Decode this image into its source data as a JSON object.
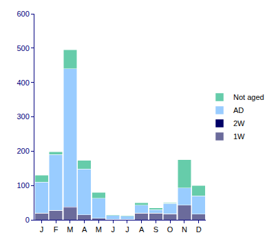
{
  "chart_data": {
    "type": "bar",
    "stacked": true,
    "categories": [
      "J",
      "F",
      "M",
      "A",
      "M",
      "J",
      "J",
      "A",
      "S",
      "O",
      "N",
      "D"
    ],
    "series": [
      {
        "name": "1W",
        "color": "#6b6b9b",
        "values": [
          20,
          28,
          35,
          15,
          5,
          2,
          2,
          20,
          20,
          18,
          43,
          17
        ]
      },
      {
        "name": "2W",
        "color": "#000066",
        "values": [
          0,
          0,
          3,
          0,
          0,
          0,
          0,
          0,
          0,
          0,
          0,
          0
        ]
      },
      {
        "name": "AD",
        "color": "#99ccff",
        "values": [
          90,
          162,
          402,
          133,
          58,
          11,
          9,
          23,
          10,
          30,
          50,
          53
        ]
      },
      {
        "name": "Not aged",
        "color": "#66ccaa",
        "values": [
          20,
          8,
          55,
          25,
          17,
          2,
          2,
          7,
          5,
          2,
          82,
          30
        ]
      }
    ],
    "ylim": [
      0,
      600
    ],
    "yticks": [
      0,
      100,
      200,
      300,
      400,
      500,
      600
    ],
    "grid": false,
    "legend": "right"
  }
}
